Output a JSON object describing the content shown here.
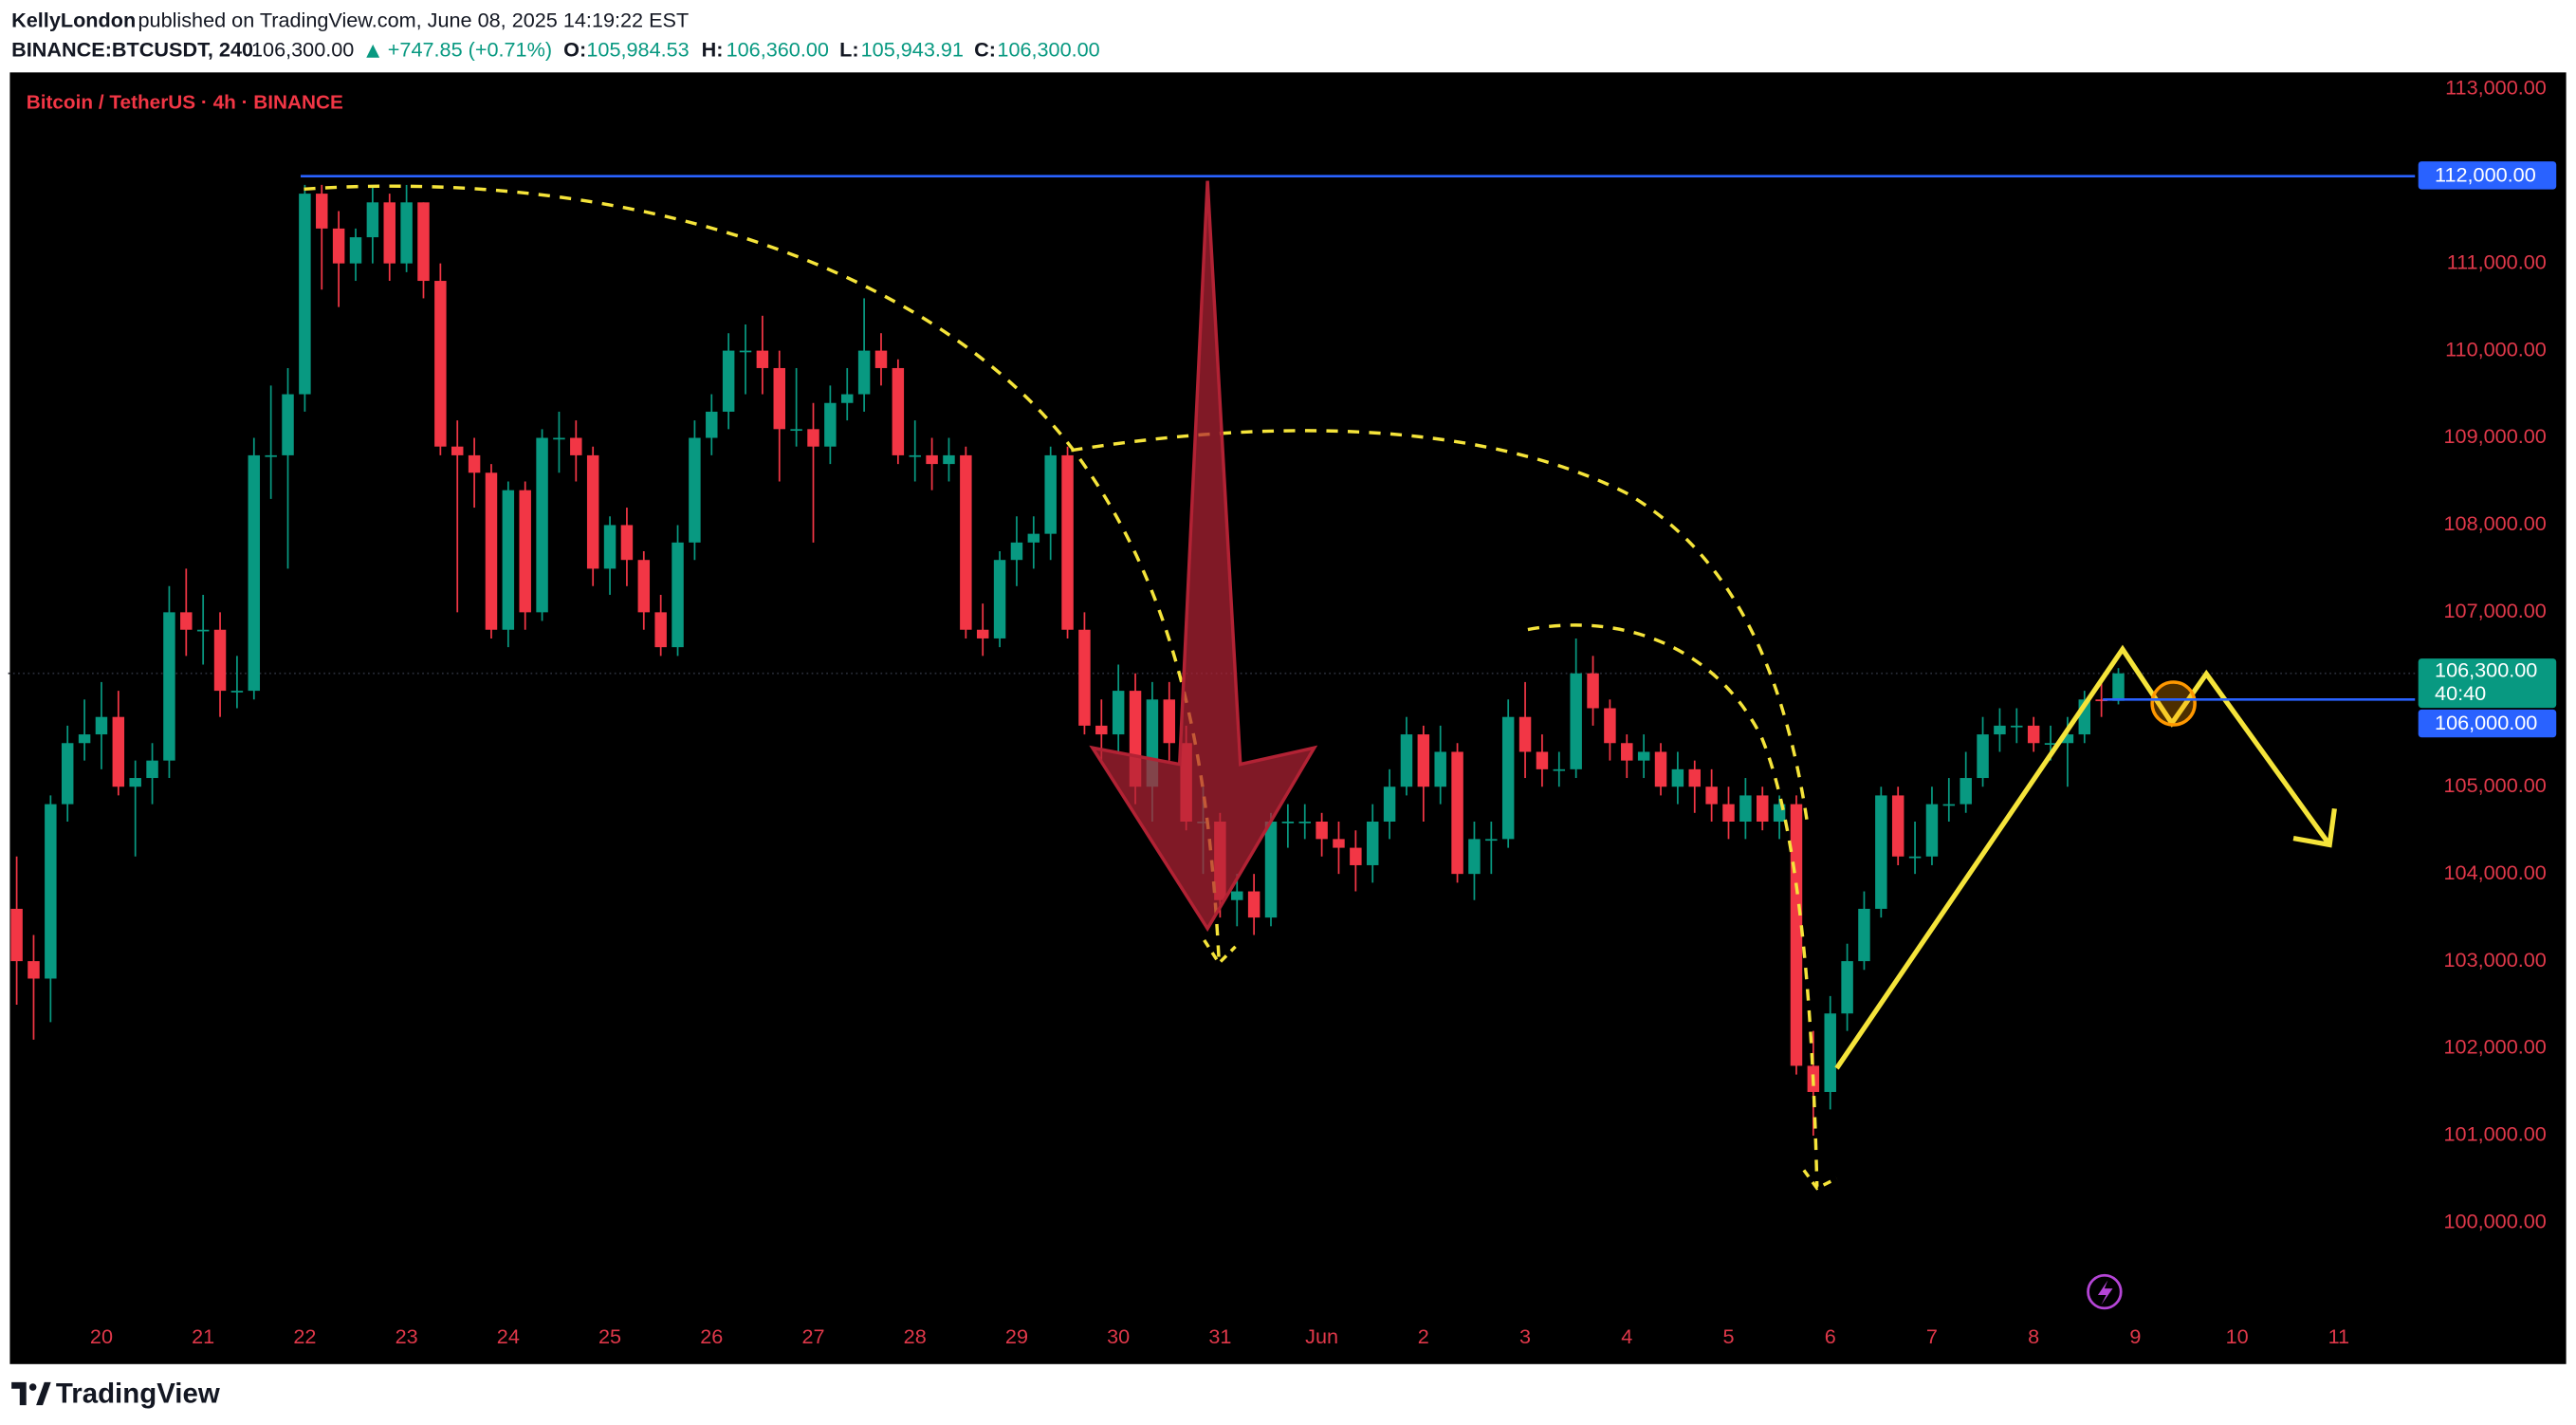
{
  "header": {
    "author": "KellyLondon",
    "published": "published on TradingView.com, June 08, 2025 14:19:22 EST",
    "symbol": "BINANCE:BTCUSDT, 240",
    "last": "106,300.00",
    "change": "+747.85 (+0.71%)",
    "ohlc": [
      {
        "label": "O:",
        "value": "105,984.53"
      },
      {
        "label": "H:",
        "value": "106,360.00"
      },
      {
        "label": "L:",
        "value": "105,943.91"
      },
      {
        "label": "C:",
        "value": "106,300.00"
      }
    ]
  },
  "footer": {
    "brand": "TradingView"
  },
  "chart_data": {
    "type": "candlestick",
    "title": "Bitcoin / TetherUS · 4h · BINANCE",
    "up_color": "#089981",
    "down_color": "#f23645",
    "xlim": [
      -0.5,
      141.5
    ],
    "ylim": [
      98380,
      113190
    ],
    "xticks": [
      {
        "value": 5,
        "label": "20"
      },
      {
        "value": 11,
        "label": "21"
      },
      {
        "value": 17,
        "label": "22"
      },
      {
        "value": 23,
        "label": "23"
      },
      {
        "value": 29,
        "label": "24"
      },
      {
        "value": 35,
        "label": "25"
      },
      {
        "value": 41,
        "label": "26"
      },
      {
        "value": 47,
        "label": "27"
      },
      {
        "value": 53,
        "label": "28"
      },
      {
        "value": 59,
        "label": "29"
      },
      {
        "value": 65,
        "label": "30"
      },
      {
        "value": 71,
        "label": "31"
      },
      {
        "value": 77,
        "label": "Jun"
      },
      {
        "value": 83,
        "label": "2"
      },
      {
        "value": 89,
        "label": "3"
      },
      {
        "value": 95,
        "label": "4"
      },
      {
        "value": 101,
        "label": "5"
      },
      {
        "value": 107,
        "label": "6"
      },
      {
        "value": 113,
        "label": "7"
      },
      {
        "value": 119,
        "label": "8"
      },
      {
        "value": 125,
        "label": "9"
      },
      {
        "value": 131,
        "label": "10"
      },
      {
        "value": 137,
        "label": "11"
      }
    ],
    "yticks": [
      {
        "value": 100000,
        "label": "100,000.00"
      },
      {
        "value": 101000,
        "label": "101,000.00"
      },
      {
        "value": 102000,
        "label": "102,000.00"
      },
      {
        "value": 103000,
        "label": "103,000.00"
      },
      {
        "value": 104000,
        "label": "104,000.00"
      },
      {
        "value": 105000,
        "label": "105,000.00"
      },
      {
        "value": 106000,
        "label": "106,000.00"
      },
      {
        "value": 107000,
        "label": "107,000.00"
      },
      {
        "value": 108000,
        "label": "108,000.00"
      },
      {
        "value": 109000,
        "label": "109,000.00"
      },
      {
        "value": 110000,
        "label": "110,000.00"
      },
      {
        "value": 111000,
        "label": "111,000.00"
      },
      {
        "value": 112000,
        "label": "112,000.00"
      },
      {
        "value": 113000,
        "label": "113,000.00"
      }
    ],
    "levels": [
      {
        "value": 112000,
        "label": "112,000.00",
        "color": "#2962ff"
      },
      {
        "value": 106000,
        "label": "106,000.00",
        "color": "#2962ff"
      }
    ],
    "last_price": {
      "value": 106300,
      "label": "106,300.00",
      "countdown": "40:40",
      "color": "#089981"
    },
    "ohlc": [
      [
        103600,
        104200,
        102500,
        103000
      ],
      [
        103000,
        103300,
        102100,
        102800
      ],
      [
        102800,
        104900,
        102300,
        104800
      ],
      [
        104800,
        105700,
        104600,
        105500
      ],
      [
        105500,
        106000,
        105300,
        105600
      ],
      [
        105600,
        106200,
        105200,
        105800
      ],
      [
        105800,
        106100,
        104900,
        105000
      ],
      [
        105000,
        105300,
        104200,
        105100
      ],
      [
        105100,
        105500,
        104800,
        105300
      ],
      [
        105300,
        107300,
        105100,
        107000
      ],
      [
        107000,
        107500,
        106500,
        106800
      ],
      [
        106800,
        107200,
        106400,
        106800
      ],
      [
        106800,
        107000,
        105800,
        106100
      ],
      [
        106100,
        106500,
        105900,
        106100
      ],
      [
        106100,
        109000,
        106000,
        108800
      ],
      [
        108800,
        109600,
        108300,
        108800
      ],
      [
        108800,
        109800,
        107500,
        109500
      ],
      [
        109500,
        111900,
        109300,
        111800
      ],
      [
        111800,
        111900,
        110700,
        111400
      ],
      [
        111400,
        111600,
        110500,
        111000
      ],
      [
        111000,
        111400,
        110800,
        111300
      ],
      [
        111300,
        111900,
        111000,
        111700
      ],
      [
        111700,
        111800,
        110800,
        111000
      ],
      [
        111000,
        111900,
        110900,
        111700
      ],
      [
        111700,
        111700,
        110600,
        110800
      ],
      [
        110800,
        111000,
        108800,
        108900
      ],
      [
        108900,
        109200,
        107000,
        108800
      ],
      [
        108800,
        109000,
        108200,
        108600
      ],
      [
        108600,
        108700,
        106700,
        106800
      ],
      [
        106800,
        108500,
        106600,
        108400
      ],
      [
        108400,
        108500,
        106800,
        107000
      ],
      [
        107000,
        109100,
        106900,
        109000
      ],
      [
        109000,
        109300,
        108600,
        109000
      ],
      [
        109000,
        109200,
        108500,
        108800
      ],
      [
        108800,
        108900,
        107300,
        107500
      ],
      [
        107500,
        108100,
        107200,
        108000
      ],
      [
        108000,
        108200,
        107300,
        107600
      ],
      [
        107600,
        107700,
        106800,
        107000
      ],
      [
        107000,
        107200,
        106500,
        106600
      ],
      [
        106600,
        108000,
        106500,
        107800
      ],
      [
        107800,
        109200,
        107600,
        109000
      ],
      [
        109000,
        109500,
        108800,
        109300
      ],
      [
        109300,
        110200,
        109100,
        110000
      ],
      [
        110000,
        110300,
        109500,
        110000
      ],
      [
        110000,
        110400,
        109500,
        109800
      ],
      [
        109800,
        110000,
        108500,
        109100
      ],
      [
        109100,
        109800,
        108900,
        109100
      ],
      [
        109100,
        109400,
        107800,
        108900
      ],
      [
        108900,
        109600,
        108700,
        109400
      ],
      [
        109400,
        109800,
        109200,
        109500
      ],
      [
        109500,
        110600,
        109300,
        110000
      ],
      [
        110000,
        110200,
        109600,
        109800
      ],
      [
        109800,
        109900,
        108700,
        108800
      ],
      [
        108800,
        109200,
        108500,
        108800
      ],
      [
        108800,
        109000,
        108400,
        108700
      ],
      [
        108700,
        109000,
        108500,
        108800
      ],
      [
        108800,
        108900,
        106700,
        106800
      ],
      [
        106800,
        107100,
        106500,
        106700
      ],
      [
        106700,
        107700,
        106600,
        107600
      ],
      [
        107600,
        108100,
        107300,
        107800
      ],
      [
        107800,
        108100,
        107500,
        107900
      ],
      [
        107900,
        108900,
        107600,
        108800
      ],
      [
        108800,
        108900,
        106700,
        106800
      ],
      [
        106800,
        107000,
        105600,
        105700
      ],
      [
        105700,
        106000,
        105300,
        105600
      ],
      [
        105600,
        106400,
        105400,
        106100
      ],
      [
        106100,
        106300,
        104800,
        105000
      ],
      [
        105000,
        106200,
        104600,
        106000
      ],
      [
        106000,
        106200,
        105300,
        105500
      ],
      [
        105500,
        105700,
        104500,
        104600
      ],
      [
        104600,
        105000,
        104000,
        104600
      ],
      [
        104600,
        104700,
        103500,
        103700
      ],
      [
        103700,
        104000,
        103400,
        103800
      ],
      [
        103800,
        104000,
        103300,
        103500
      ],
      [
        103500,
        104700,
        103400,
        104600
      ],
      [
        104600,
        104800,
        104300,
        104600
      ],
      [
        104600,
        104800,
        104400,
        104600
      ],
      [
        104600,
        104700,
        104200,
        104400
      ],
      [
        104400,
        104600,
        104000,
        104300
      ],
      [
        104300,
        104500,
        103800,
        104100
      ],
      [
        104100,
        104800,
        103900,
        104600
      ],
      [
        104600,
        105200,
        104400,
        105000
      ],
      [
        105000,
        105800,
        104900,
        105600
      ],
      [
        105600,
        105700,
        104600,
        105000
      ],
      [
        105000,
        105700,
        104800,
        105400
      ],
      [
        105400,
        105500,
        103900,
        104000
      ],
      [
        104000,
        104600,
        103700,
        104400
      ],
      [
        104400,
        104600,
        104000,
        104400
      ],
      [
        104400,
        106000,
        104300,
        105800
      ],
      [
        105800,
        106200,
        105100,
        105400
      ],
      [
        105400,
        105600,
        105000,
        105200
      ],
      [
        105200,
        105400,
        105000,
        105200
      ],
      [
        105200,
        106700,
        105100,
        106300
      ],
      [
        106300,
        106500,
        105700,
        105900
      ],
      [
        105900,
        106000,
        105300,
        105500
      ],
      [
        105500,
        105600,
        105100,
        105300
      ],
      [
        105300,
        105600,
        105100,
        105400
      ],
      [
        105400,
        105500,
        104900,
        105000
      ],
      [
        105000,
        105400,
        104800,
        105200
      ],
      [
        105200,
        105300,
        104700,
        105000
      ],
      [
        105000,
        105200,
        104600,
        104800
      ],
      [
        104800,
        105000,
        104400,
        104600
      ],
      [
        104600,
        105100,
        104400,
        104900
      ],
      [
        104900,
        105000,
        104500,
        104600
      ],
      [
        104600,
        104900,
        104400,
        104800
      ],
      [
        104800,
        104900,
        101700,
        101800
      ],
      [
        101800,
        102200,
        101000,
        101500
      ],
      [
        101500,
        102600,
        101300,
        102400
      ],
      [
        102400,
        103200,
        102200,
        103000
      ],
      [
        103000,
        103800,
        102900,
        103600
      ],
      [
        103600,
        105000,
        103500,
        104900
      ],
      [
        104900,
        105000,
        104100,
        104200
      ],
      [
        104200,
        104600,
        104000,
        104200
      ],
      [
        104200,
        105000,
        104100,
        104800
      ],
      [
        104800,
        105100,
        104600,
        104800
      ],
      [
        104800,
        105400,
        104700,
        105100
      ],
      [
        105100,
        105800,
        105000,
        105600
      ],
      [
        105600,
        105900,
        105400,
        105700
      ],
      [
        105700,
        105900,
        105500,
        105700
      ],
      [
        105700,
        105800,
        105400,
        105500
      ],
      [
        105500,
        105700,
        105300,
        105500
      ],
      [
        105500,
        105800,
        105000,
        105600
      ],
      [
        105600,
        106100,
        105500,
        106000
      ],
      [
        106000,
        106200,
        105800,
        105984.53
      ],
      [
        105984.53,
        106360,
        105943.91,
        106300
      ]
    ]
  }
}
